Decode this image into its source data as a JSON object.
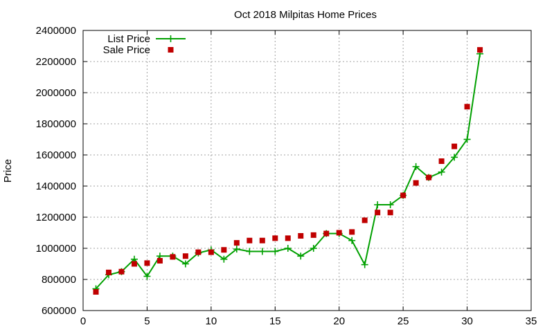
{
  "chart_data": {
    "type": "line",
    "title": "Oct 2018 Milpitas Home Prices",
    "xlabel": "",
    "ylabel": "Price",
    "xlim": [
      0,
      35
    ],
    "ylim": [
      600000,
      2400000
    ],
    "xticks": [
      0,
      5,
      10,
      15,
      20,
      25,
      30,
      35
    ],
    "yticks": [
      600000,
      800000,
      1000000,
      1200000,
      1400000,
      1600000,
      1800000,
      2000000,
      2200000,
      2400000
    ],
    "grid": true,
    "legend_position": "top-left",
    "series": [
      {
        "name": "List Price",
        "style": "lines+points",
        "color": "#00a000",
        "x": [
          1,
          2,
          3,
          4,
          5,
          6,
          7,
          8,
          9,
          10,
          11,
          12,
          13,
          14,
          15,
          16,
          17,
          18,
          19,
          20,
          21,
          22,
          23,
          24,
          25,
          26,
          27,
          28,
          29,
          30,
          31
        ],
        "y": [
          740000,
          830000,
          850000,
          930000,
          820000,
          950000,
          950000,
          900000,
          970000,
          990000,
          930000,
          995000,
          980000,
          980000,
          980000,
          1000000,
          950000,
          1000000,
          1095000,
          1095000,
          1050000,
          895000,
          1280000,
          1280000,
          1340000,
          1525000,
          1455000,
          1490000,
          1585000,
          1700000,
          2250000
        ]
      },
      {
        "name": "Sale Price",
        "style": "points",
        "color": "#c00000",
        "x": [
          1,
          2,
          3,
          4,
          5,
          6,
          7,
          8,
          9,
          10,
          11,
          12,
          13,
          14,
          15,
          16,
          17,
          18,
          19,
          20,
          21,
          22,
          23,
          24,
          25,
          26,
          27,
          28,
          29,
          30,
          31
        ],
        "y": [
          720000,
          845000,
          850000,
          900000,
          905000,
          920000,
          945000,
          950000,
          975000,
          975000,
          990000,
          1035000,
          1050000,
          1050000,
          1065000,
          1065000,
          1080000,
          1085000,
          1095000,
          1100000,
          1105000,
          1180000,
          1230000,
          1230000,
          1340000,
          1420000,
          1455000,
          1560000,
          1655000,
          1910000,
          2275000
        ]
      }
    ]
  }
}
